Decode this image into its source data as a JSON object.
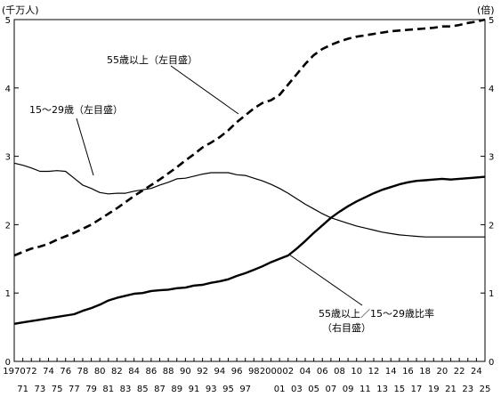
{
  "chart_data": {
    "type": "line",
    "left_unit": "(千万人)",
    "right_unit": "(倍)",
    "y_left_lim": [
      0,
      5
    ],
    "y_right_lim": [
      0,
      5
    ],
    "y_ticks": [
      "0",
      "1",
      "2",
      "3",
      "4",
      "5"
    ],
    "x_labels_top": [
      "1970",
      "72",
      "74",
      "76",
      "78",
      "80",
      "82",
      "84",
      "86",
      "88",
      "90",
      "92",
      "94",
      "96",
      "98",
      "2000",
      "02",
      "04",
      "06",
      "08",
      "10",
      "12",
      "14",
      "16",
      "18",
      "20",
      "22",
      "24"
    ],
    "x_labels_bottom": [
      "71",
      "73",
      "75",
      "77",
      "79",
      "81",
      "83",
      "85",
      "87",
      "89",
      "91",
      "93",
      "95",
      "97",
      "01",
      "03",
      "05",
      "07",
      "09",
      "11",
      "13",
      "15",
      "17",
      "19",
      "21",
      "23",
      "25"
    ],
    "x": [
      1970,
      1971,
      1972,
      1973,
      1974,
      1975,
      1976,
      1977,
      1978,
      1979,
      1980,
      1981,
      1982,
      1983,
      1984,
      1985,
      1986,
      1987,
      1988,
      1989,
      1990,
      1991,
      1992,
      1993,
      1994,
      1995,
      1996,
      1997,
      1998,
      1999,
      2000,
      2001,
      2002,
      2003,
      2004,
      2005,
      2006,
      2007,
      2008,
      2009,
      2010,
      2011,
      2012,
      2013,
      2014,
      2015,
      2016,
      2017,
      2018,
      2019,
      2020,
      2021,
      2022,
      2023,
      2024,
      2025
    ],
    "series": [
      {
        "name": "55歳以上（左目盛）",
        "axis": "left",
        "style": "dashed",
        "values": [
          1.55,
          1.6,
          1.65,
          1.68,
          1.72,
          1.78,
          1.83,
          1.88,
          1.94,
          2.0,
          2.08,
          2.16,
          2.24,
          2.33,
          2.42,
          2.5,
          2.58,
          2.66,
          2.75,
          2.84,
          2.94,
          3.03,
          3.13,
          3.2,
          3.28,
          3.38,
          3.5,
          3.6,
          3.7,
          3.78,
          3.82,
          3.9,
          4.05,
          4.2,
          4.35,
          4.48,
          4.57,
          4.63,
          4.68,
          4.72,
          4.75,
          4.77,
          4.79,
          4.81,
          4.83,
          4.84,
          4.85,
          4.86,
          4.87,
          4.88,
          4.9,
          4.9,
          4.92,
          4.95,
          4.97,
          5.0
        ]
      },
      {
        "name": "15～29歳（左目盛）",
        "axis": "left",
        "style": "solid",
        "values": [
          2.9,
          2.87,
          2.83,
          2.78,
          2.78,
          2.79,
          2.78,
          2.68,
          2.58,
          2.53,
          2.47,
          2.45,
          2.46,
          2.46,
          2.49,
          2.51,
          2.53,
          2.58,
          2.62,
          2.67,
          2.68,
          2.71,
          2.74,
          2.76,
          2.76,
          2.76,
          2.73,
          2.72,
          2.68,
          2.64,
          2.59,
          2.53,
          2.46,
          2.38,
          2.3,
          2.23,
          2.16,
          2.1,
          2.06,
          2.02,
          1.98,
          1.95,
          1.92,
          1.89,
          1.87,
          1.85,
          1.84,
          1.83,
          1.82,
          1.82,
          1.82,
          1.82,
          1.82,
          1.82,
          1.82,
          1.82
        ]
      },
      {
        "name": "55歳以上／15～29歳比率（右目盛）",
        "axis": "right",
        "style": "solid-thick",
        "values": [
          0.55,
          0.57,
          0.59,
          0.61,
          0.63,
          0.65,
          0.67,
          0.69,
          0.74,
          0.78,
          0.83,
          0.89,
          0.93,
          0.96,
          0.99,
          1.0,
          1.03,
          1.04,
          1.05,
          1.07,
          1.08,
          1.11,
          1.12,
          1.15,
          1.17,
          1.2,
          1.25,
          1.29,
          1.34,
          1.39,
          1.45,
          1.5,
          1.55,
          1.65,
          1.76,
          1.88,
          1.99,
          2.1,
          2.19,
          2.27,
          2.34,
          2.4,
          2.46,
          2.51,
          2.55,
          2.59,
          2.62,
          2.64,
          2.65,
          2.66,
          2.67,
          2.66,
          2.67,
          2.68,
          2.69,
          2.7
        ]
      }
    ],
    "annotations": {
      "older": "55歳以上（左目盛）",
      "young": "15～29歳（左目盛）",
      "ratio_line1": "55歳以上／15～29歳比率",
      "ratio_line2": "（右目盛）"
    }
  }
}
